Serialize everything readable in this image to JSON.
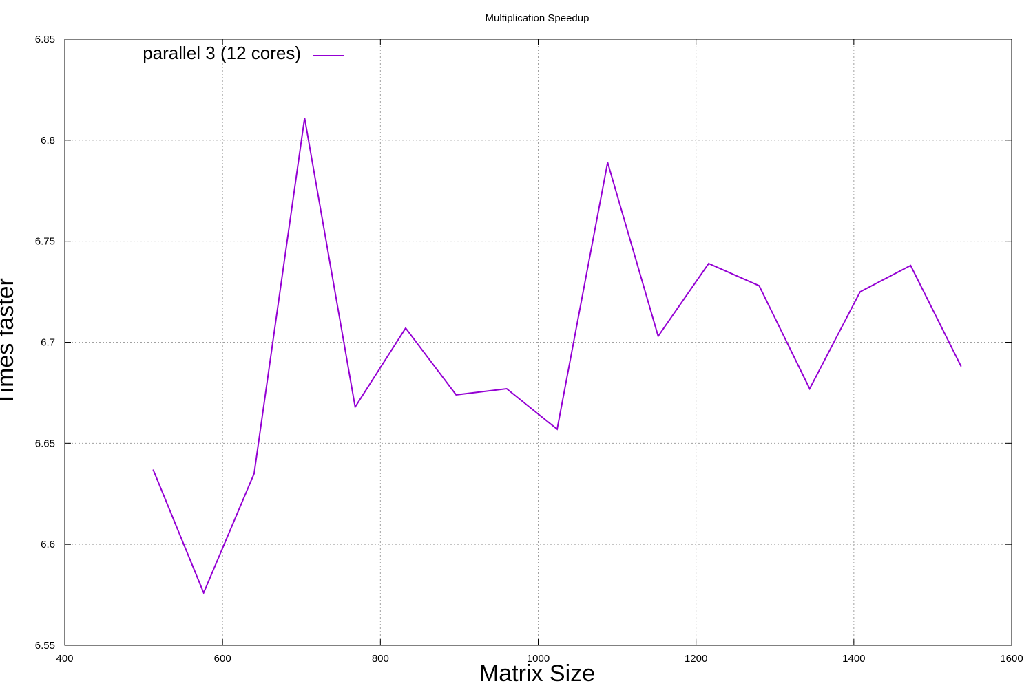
{
  "chart_data": {
    "type": "line",
    "title": "Multiplication Speedup",
    "xlabel": "Matrix Size",
    "ylabel": "Times faster",
    "xlim": [
      400,
      1600
    ],
    "ylim": [
      6.55,
      6.85
    ],
    "x_ticks": [
      "400",
      "600",
      "800",
      "1000",
      "1200",
      "1400",
      "1600"
    ],
    "y_ticks": [
      "6.55",
      "6.6",
      "6.65",
      "6.7",
      "6.75",
      "6.8",
      "6.85"
    ],
    "grid": true,
    "legend_position": "top-left",
    "series": [
      {
        "name": "parallel 3 (12 cores)",
        "color": "#9400d3",
        "x": [
          512,
          576,
          640,
          704,
          768,
          832,
          896,
          960,
          1024,
          1088,
          1152,
          1216,
          1280,
          1344,
          1408,
          1472,
          1536
        ],
        "y": [
          6.637,
          6.576,
          6.635,
          6.811,
          6.668,
          6.707,
          6.674,
          6.677,
          6.657,
          6.789,
          6.703,
          6.739,
          6.728,
          6.677,
          6.725,
          6.738,
          6.688
        ]
      }
    ]
  }
}
